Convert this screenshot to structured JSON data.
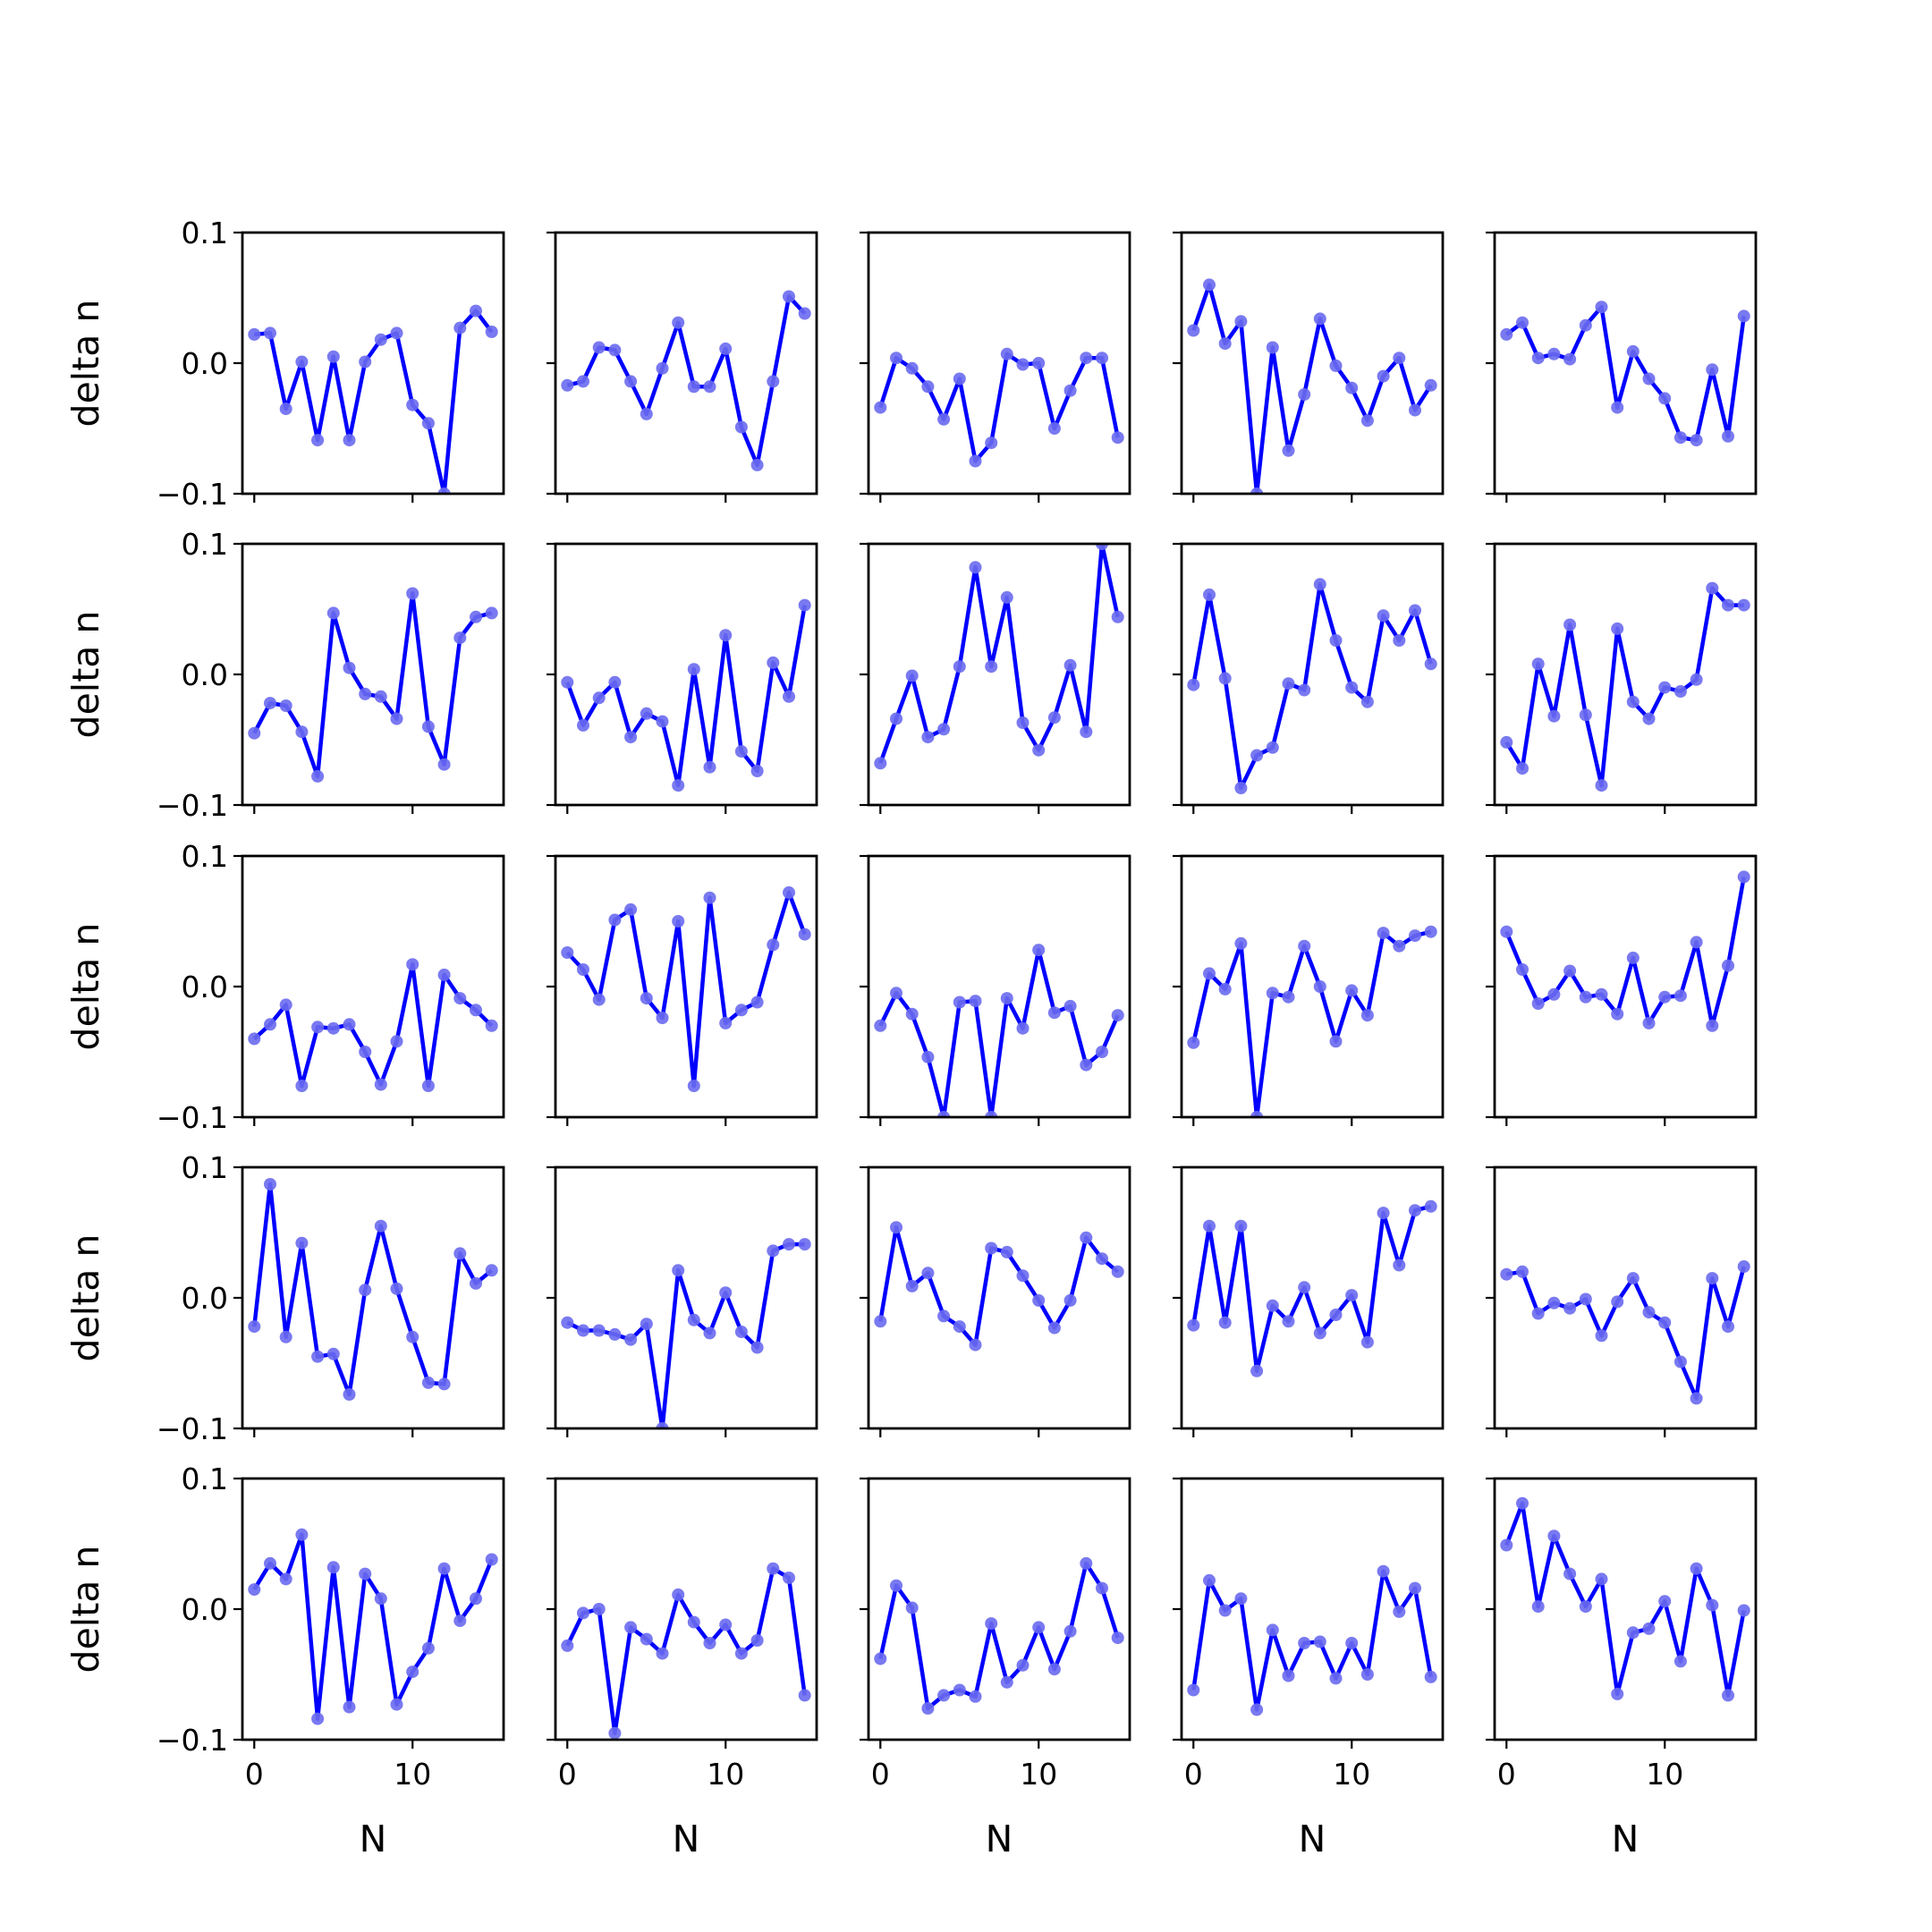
{
  "chart_data": {
    "type": "line",
    "layout": "5x5 grid of small multiples with shared axes",
    "xlabel": "N",
    "ylabel": "delta n",
    "xlim": [
      -0.75,
      15.75
    ],
    "ylim": [
      -0.1,
      0.1
    ],
    "xticks": [
      0,
      10
    ],
    "xtick_labels": [
      "0",
      "10"
    ],
    "yticks": [
      -0.1,
      0.0,
      0.1
    ],
    "ytick_labels": [
      "−0.1",
      "0.0",
      "0.1"
    ],
    "line_color": "#0000ff",
    "marker_color": "#6a6af0",
    "x": [
      0,
      1,
      2,
      3,
      4,
      5,
      6,
      7,
      8,
      9,
      10,
      11,
      12,
      13,
      14,
      15
    ],
    "panels": [
      [
        0.022,
        0.023,
        -0.035,
        0.001,
        -0.059,
        0.005,
        -0.059,
        0.001,
        0.018,
        0.023,
        -0.032,
        -0.046,
        -0.1,
        0.027,
        0.04,
        0.024
      ],
      [
        -0.017,
        -0.014,
        0.012,
        0.01,
        -0.014,
        -0.039,
        -0.004,
        0.031,
        -0.018,
        -0.018,
        0.011,
        -0.049,
        -0.078,
        -0.014,
        0.051,
        0.038
      ],
      [
        -0.034,
        0.004,
        -0.004,
        -0.018,
        -0.043,
        -0.012,
        -0.075,
        -0.061,
        0.007,
        -0.001,
        0.0,
        -0.05,
        -0.021,
        0.004,
        0.004,
        -0.057
      ],
      [
        0.025,
        0.06,
        0.015,
        0.032,
        -0.1,
        0.012,
        -0.067,
        -0.024,
        0.034,
        -0.002,
        -0.019,
        -0.044,
        -0.01,
        0.004,
        -0.036,
        -0.017
      ],
      [
        0.022,
        0.031,
        0.004,
        0.007,
        0.003,
        0.029,
        0.043,
        -0.034,
        0.009,
        -0.012,
        -0.027,
        -0.057,
        -0.059,
        -0.005,
        -0.056,
        0.036
      ],
      [
        -0.045,
        -0.022,
        -0.024,
        -0.044,
        -0.078,
        0.047,
        0.005,
        -0.015,
        -0.017,
        -0.034,
        0.062,
        -0.04,
        -0.069,
        0.028,
        0.044,
        0.047
      ],
      [
        -0.006,
        -0.039,
        -0.018,
        -0.006,
        -0.048,
        -0.03,
        -0.036,
        -0.085,
        0.004,
        -0.071,
        0.03,
        -0.059,
        -0.074,
        0.009,
        -0.017,
        0.053
      ],
      [
        -0.068,
        -0.034,
        -0.001,
        -0.048,
        -0.042,
        0.006,
        0.082,
        0.006,
        0.059,
        -0.037,
        -0.058,
        -0.033,
        0.007,
        -0.044,
        0.1,
        0.044
      ],
      [
        -0.008,
        0.061,
        -0.003,
        -0.087,
        -0.062,
        -0.056,
        -0.007,
        -0.012,
        0.069,
        0.026,
        -0.01,
        -0.021,
        0.045,
        0.026,
        0.049,
        0.008
      ],
      [
        -0.052,
        -0.072,
        0.008,
        -0.032,
        0.038,
        -0.031,
        -0.085,
        0.035,
        -0.021,
        -0.034,
        -0.01,
        -0.013,
        -0.004,
        0.066,
        0.053,
        0.053
      ],
      [
        -0.04,
        -0.029,
        -0.014,
        -0.076,
        -0.031,
        -0.032,
        -0.029,
        -0.05,
        -0.075,
        -0.042,
        0.017,
        -0.076,
        0.009,
        -0.009,
        -0.018,
        -0.03
      ],
      [
        0.026,
        0.013,
        -0.01,
        0.051,
        0.059,
        -0.009,
        -0.024,
        0.05,
        -0.076,
        0.068,
        -0.028,
        -0.018,
        -0.012,
        0.032,
        0.072,
        0.04
      ],
      [
        -0.03,
        -0.005,
        -0.021,
        -0.054,
        -0.1,
        -0.012,
        -0.011,
        -0.1,
        -0.009,
        -0.032,
        0.028,
        -0.02,
        -0.015,
        -0.06,
        -0.05,
        -0.022
      ],
      [
        -0.043,
        0.01,
        -0.002,
        0.033,
        -0.1,
        -0.005,
        -0.008,
        0.031,
        0.0,
        -0.042,
        -0.003,
        -0.022,
        0.041,
        0.031,
        0.039,
        0.042
      ],
      [
        0.042,
        0.013,
        -0.013,
        -0.006,
        0.012,
        -0.008,
        -0.006,
        -0.021,
        0.022,
        -0.028,
        -0.008,
        -0.007,
        0.034,
        -0.03,
        0.016,
        0.084
      ],
      [
        -0.022,
        0.087,
        -0.03,
        0.042,
        -0.045,
        -0.043,
        -0.074,
        0.006,
        0.055,
        0.007,
        -0.03,
        -0.065,
        -0.066,
        0.034,
        0.011,
        0.021
      ],
      [
        -0.019,
        -0.025,
        -0.025,
        -0.028,
        -0.032,
        -0.02,
        -0.1,
        0.021,
        -0.017,
        -0.027,
        0.004,
        -0.026,
        -0.038,
        0.036,
        0.041,
        0.041
      ],
      [
        -0.018,
        0.054,
        0.009,
        0.019,
        -0.014,
        -0.022,
        -0.036,
        0.038,
        0.035,
        0.017,
        -0.002,
        -0.023,
        -0.002,
        0.046,
        0.03,
        0.02
      ],
      [
        -0.021,
        0.055,
        -0.019,
        0.055,
        -0.056,
        -0.006,
        -0.018,
        0.008,
        -0.027,
        -0.013,
        0.002,
        -0.034,
        0.065,
        0.025,
        0.067,
        0.07
      ],
      [
        0.018,
        0.02,
        -0.012,
        -0.004,
        -0.008,
        -0.001,
        -0.029,
        -0.003,
        0.015,
        -0.011,
        -0.019,
        -0.049,
        -0.077,
        0.015,
        -0.022,
        0.024
      ],
      [
        0.015,
        0.035,
        0.023,
        0.057,
        -0.084,
        0.032,
        -0.075,
        0.027,
        0.008,
        -0.073,
        -0.048,
        -0.03,
        0.031,
        -0.009,
        0.008,
        0.038
      ],
      [
        -0.028,
        -0.003,
        0.0,
        -0.095,
        -0.014,
        -0.023,
        -0.034,
        0.011,
        -0.01,
        -0.026,
        -0.012,
        -0.034,
        -0.024,
        0.031,
        0.024,
        -0.066
      ],
      [
        -0.038,
        0.018,
        0.001,
        -0.076,
        -0.066,
        -0.062,
        -0.067,
        -0.011,
        -0.056,
        -0.043,
        -0.014,
        -0.046,
        -0.017,
        0.035,
        0.016,
        -0.022
      ],
      [
        -0.062,
        0.022,
        -0.001,
        0.008,
        -0.077,
        -0.016,
        -0.051,
        -0.026,
        -0.025,
        -0.053,
        -0.026,
        -0.05,
        0.029,
        -0.002,
        0.016,
        -0.052
      ],
      [
        0.049,
        0.081,
        0.002,
        0.056,
        0.027,
        0.002,
        0.023,
        -0.065,
        -0.018,
        -0.015,
        0.006,
        -0.04,
        0.031,
        0.003,
        -0.066,
        -0.001
      ]
    ]
  }
}
